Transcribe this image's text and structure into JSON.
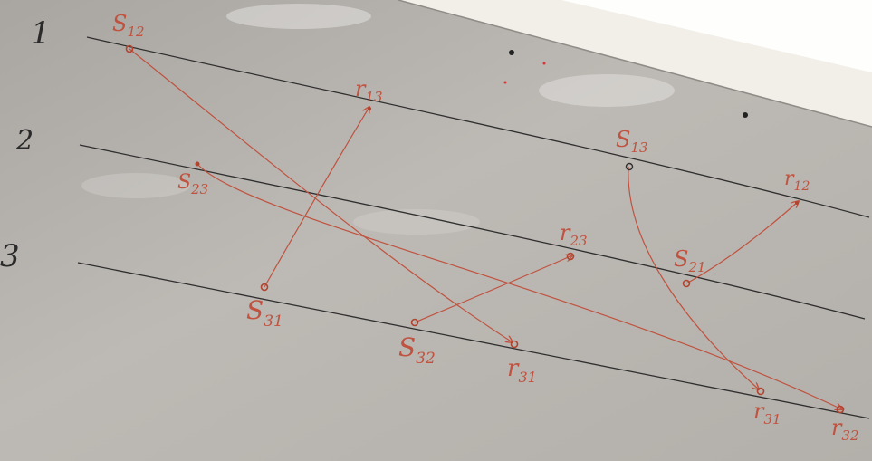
{
  "process_numbers": [
    "1",
    "2",
    "3"
  ],
  "events": {
    "s12": {
      "main": "S",
      "sub": "12"
    },
    "s13": {
      "main": "S",
      "sub": "13"
    },
    "s21": {
      "main": "S",
      "sub": "21"
    },
    "s23": {
      "main": "S",
      "sub": "23"
    },
    "s31": {
      "main": "S",
      "sub": "31"
    },
    "s32": {
      "main": "S",
      "sub": "32"
    },
    "r12": {
      "main": "r",
      "sub": "12"
    },
    "r13": {
      "main": "r",
      "sub": "13"
    },
    "r23": {
      "main": "r",
      "sub": "23"
    },
    "r31a": {
      "main": "r",
      "sub": "31"
    },
    "r31b": {
      "main": "r",
      "sub": "31"
    },
    "r32": {
      "main": "r",
      "sub": "32"
    }
  },
  "colors": {
    "ink_red": "#c0523f",
    "ink_dark": "#2a2a2a",
    "board": "#bcb8b3"
  }
}
